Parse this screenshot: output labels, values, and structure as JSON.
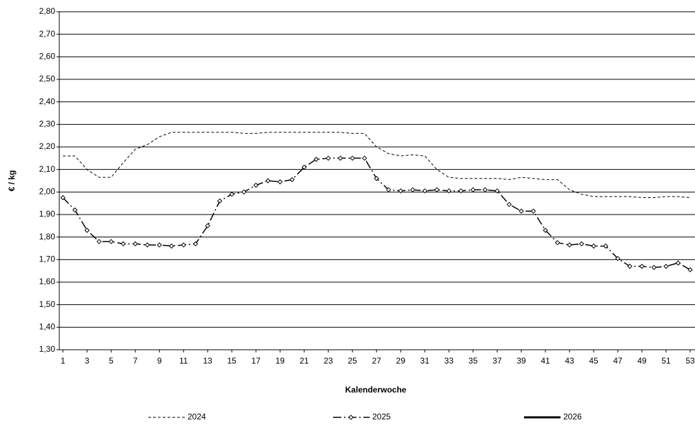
{
  "chart_data": {
    "type": "line",
    "xlabel": "Kalenderwoche",
    "ylabel": "€ / kg",
    "x": [
      1,
      2,
      3,
      4,
      5,
      6,
      7,
      8,
      9,
      10,
      11,
      12,
      13,
      14,
      15,
      16,
      17,
      18,
      19,
      20,
      21,
      22,
      23,
      24,
      25,
      26,
      27,
      28,
      29,
      30,
      31,
      32,
      33,
      34,
      35,
      36,
      37,
      38,
      39,
      40,
      41,
      42,
      43,
      44,
      45,
      46,
      47,
      48,
      49,
      50,
      51,
      52,
      53
    ],
    "xlim": [
      0.7,
      53.4
    ],
    "xticks": [
      1,
      3,
      5,
      7,
      9,
      11,
      13,
      15,
      17,
      19,
      21,
      23,
      25,
      27,
      29,
      31,
      33,
      35,
      37,
      39,
      41,
      43,
      45,
      47,
      49,
      51,
      53
    ],
    "ylim": [
      1.3,
      2.8
    ],
    "yticks": [
      {
        "value": 1.3,
        "label": "1,30"
      },
      {
        "value": 1.4,
        "label": "1,40"
      },
      {
        "value": 1.5,
        "label": "1,50"
      },
      {
        "value": 1.6,
        "label": "1,60"
      },
      {
        "value": 1.7,
        "label": "1,70"
      },
      {
        "value": 1.8,
        "label": "1,80"
      },
      {
        "value": 1.9,
        "label": "1,90"
      },
      {
        "value": 2.0,
        "label": "2,00"
      },
      {
        "value": 2.1,
        "label": "2,10"
      },
      {
        "value": 2.2,
        "label": "2,20"
      },
      {
        "value": 2.3,
        "label": "2,30"
      },
      {
        "value": 2.4,
        "label": "2,40"
      },
      {
        "value": 2.5,
        "label": "2,50"
      },
      {
        "value": 2.6,
        "label": "2,60"
      },
      {
        "value": 2.7,
        "label": "2,70"
      },
      {
        "value": 2.8,
        "label": "2,80"
      }
    ],
    "grid": true,
    "legend": "bottom",
    "series": [
      {
        "name": "2024",
        "color": "#000000",
        "line_style": "dashed",
        "line_width": 1,
        "values": [
          2.16,
          2.16,
          2.1,
          2.065,
          2.065,
          2.13,
          2.19,
          2.21,
          2.245,
          2.265,
          2.265,
          2.265,
          2.265,
          2.265,
          2.265,
          2.26,
          2.26,
          2.265,
          2.265,
          2.265,
          2.265,
          2.265,
          2.265,
          2.265,
          2.26,
          2.26,
          2.2,
          2.17,
          2.16,
          2.165,
          2.16,
          2.1,
          2.065,
          2.06,
          2.06,
          2.06,
          2.06,
          2.055,
          2.065,
          2.06,
          2.055,
          2.055,
          2.01,
          1.99,
          1.98,
          1.98,
          1.98,
          1.98,
          1.975,
          1.975,
          1.98,
          1.98,
          1.975
        ]
      },
      {
        "name": "2025",
        "color": "#000000",
        "line_style": "dashdot",
        "line_width": 1.5,
        "marker": "diamond",
        "values": [
          1.975,
          1.92,
          1.83,
          1.78,
          1.78,
          1.77,
          1.77,
          1.765,
          1.765,
          1.76,
          1.765,
          1.77,
          1.85,
          1.96,
          1.99,
          2.0,
          2.03,
          2.05,
          2.045,
          2.055,
          2.11,
          2.145,
          2.15,
          2.15,
          2.15,
          2.15,
          2.06,
          2.01,
          2.005,
          2.01,
          2.005,
          2.01,
          2.005,
          2.005,
          2.01,
          2.01,
          2.005,
          1.945,
          1.915,
          1.915,
          1.83,
          1.775,
          1.765,
          1.77,
          1.76,
          1.76,
          1.705,
          1.67,
          1.67,
          1.665,
          1.67,
          1.685,
          1.655
        ]
      },
      {
        "name": "2026",
        "color": "#000000",
        "line_style": "solid",
        "line_width": 3,
        "values": [
          null,
          null,
          null,
          null,
          null,
          null,
          null,
          null,
          null,
          null,
          null,
          null,
          null,
          null,
          null,
          null,
          null,
          null,
          null,
          null,
          null,
          null,
          null,
          null,
          null,
          null,
          null,
          null,
          null,
          null,
          null,
          null,
          null,
          null,
          null,
          null,
          null,
          null,
          null,
          null,
          null,
          null,
          null,
          null,
          null,
          null,
          null,
          null,
          null,
          null,
          null,
          null,
          null
        ]
      }
    ]
  }
}
